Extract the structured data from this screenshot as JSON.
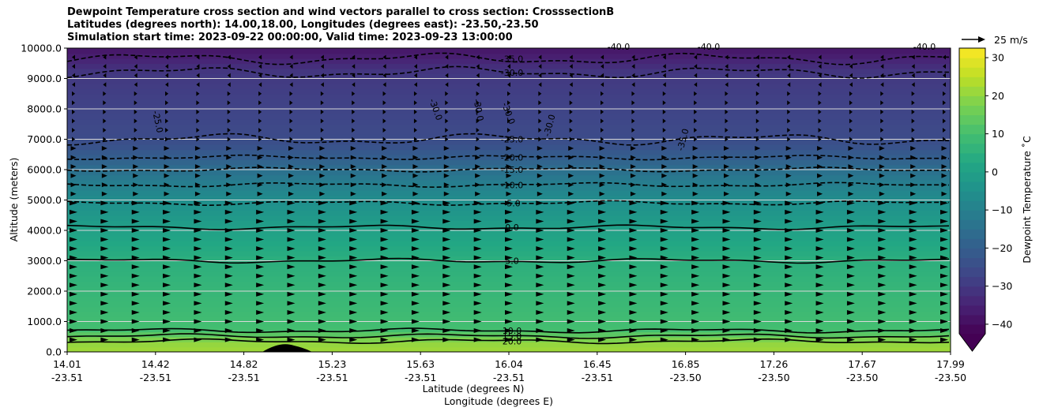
{
  "chart_data": {
    "type": "contour",
    "title_lines": [
      "Dewpoint Temperature cross section and wind vectors parallel to cross section: CrosssectionB",
      "Latitudes (degrees north): 14.00,18.00, Longitudes (degrees east): -23.50,-23.50",
      "Simulation start time: 2023-09-22 00:00:00, Valid time: 2023-09-23 13:00:00"
    ],
    "ylabel": "Altitude (meters)",
    "xlabel_lat": "Latitude (degrees N)",
    "xlabel_lon": "Longitude (degrees E)",
    "ylim": [
      0,
      10000
    ],
    "yticks": [
      "0.0",
      "1000.0",
      "2000.0",
      "3000.0",
      "4000.0",
      "5000.0",
      "6000.0",
      "7000.0",
      "8000.0",
      "9000.0",
      "10000.0"
    ],
    "xticks_lat": [
      "14.01",
      "14.42",
      "14.82",
      "15.23",
      "15.63",
      "16.04",
      "16.45",
      "16.85",
      "17.26",
      "17.67",
      "17.99"
    ],
    "xticks_lon": [
      "-23.51",
      "-23.51",
      "-23.51",
      "-23.51",
      "-23.51",
      "-23.51",
      "-23.51",
      "-23.50",
      "-23.50",
      "-23.50",
      "-23.50"
    ],
    "grid": "horizontal",
    "colorbar": {
      "label": "Dewpoint Temperature ˚C",
      "ticks": [
        "30",
        "20",
        "10",
        "0",
        "−10",
        "−20",
        "−30",
        "−40"
      ],
      "tick_values": [
        30,
        20,
        10,
        0,
        -10,
        -20,
        -30,
        -40
      ],
      "range": [
        -42.5,
        32.5
      ],
      "colormap": "viridis",
      "extend": "min"
    },
    "contour_levels": [
      {
        "value": 20,
        "label": "20.0",
        "altitude": 350,
        "style": "solid"
      },
      {
        "value": 15,
        "label": "15.0",
        "altitude": 520,
        "style": "solid"
      },
      {
        "value": 10,
        "label": "10.0",
        "altitude": 700,
        "style": "solid"
      },
      {
        "value": 5,
        "label": "5.0",
        "altitude": 3000,
        "style": "solid"
      },
      {
        "value": 0,
        "label": "0.0",
        "altitude": 4100,
        "style": "solid"
      },
      {
        "value": -5,
        "label": "-5.0",
        "altitude": 4900,
        "style": "dashed"
      },
      {
        "value": -10,
        "label": "-10.0",
        "altitude": 5500,
        "style": "dashed"
      },
      {
        "value": -15,
        "label": "-15.0",
        "altitude": 6000,
        "style": "dashed"
      },
      {
        "value": -20,
        "label": "-20.0",
        "altitude": 6400,
        "style": "dashed"
      },
      {
        "value": -25,
        "label": "-25.0",
        "altitude": 7000,
        "style": "dashed"
      },
      {
        "value": -30,
        "label": "-30.0",
        "altitude": 9200,
        "style": "dashed"
      },
      {
        "value": -35,
        "label": "-35.0",
        "altitude": 9650,
        "style": "dashed"
      }
    ],
    "extra_labels": [
      "-25.0",
      "-30.0",
      "-30.0",
      "-30.0",
      "-30.0",
      "-35.0",
      "-40.0",
      "-40.0",
      "-40.0"
    ],
    "wind_key": {
      "label": "25 m/s",
      "speed": 25
    }
  }
}
